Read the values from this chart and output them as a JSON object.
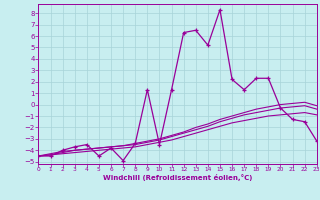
{
  "xlabel": "Windchill (Refroidissement éolien,°C)",
  "bg_color": "#c8eef0",
  "line_color": "#990099",
  "grid_color": "#a8d4d8",
  "xlim": [
    0,
    23
  ],
  "ylim": [
    -5.2,
    8.8
  ],
  "xticks": [
    0,
    1,
    2,
    3,
    4,
    5,
    6,
    7,
    8,
    9,
    10,
    11,
    12,
    13,
    14,
    15,
    16,
    17,
    18,
    19,
    20,
    21,
    22,
    23
  ],
  "yticks": [
    -5,
    -4,
    -3,
    -2,
    -1,
    0,
    1,
    2,
    3,
    4,
    5,
    6,
    7,
    8
  ],
  "series1_x": [
    0,
    1,
    2,
    3,
    4,
    5,
    6,
    7,
    8,
    9,
    10,
    11,
    12,
    13,
    14,
    15,
    16,
    17,
    18,
    19,
    20,
    21,
    22,
    23
  ],
  "series1_y": [
    -4.5,
    -4.5,
    -4.0,
    -3.7,
    -3.5,
    -4.5,
    -3.8,
    -4.9,
    -3.4,
    1.3,
    -3.5,
    1.3,
    6.3,
    6.5,
    5.2,
    8.3,
    2.2,
    1.3,
    2.3,
    2.3,
    -0.3,
    -1.3,
    -1.5,
    -3.2
  ],
  "series2_x": [
    0,
    1,
    2,
    3,
    4,
    5,
    6,
    7,
    8,
    9,
    10,
    11,
    12,
    13,
    14,
    15,
    16,
    17,
    18,
    19,
    20,
    21,
    22,
    23
  ],
  "series2_y": [
    -4.5,
    -4.3,
    -4.1,
    -4.0,
    -3.9,
    -3.8,
    -3.7,
    -3.6,
    -3.4,
    -3.2,
    -3.0,
    -2.7,
    -2.4,
    -2.0,
    -1.7,
    -1.3,
    -1.0,
    -0.7,
    -0.4,
    -0.2,
    0.0,
    0.1,
    0.2,
    -0.1
  ],
  "series3_x": [
    0,
    1,
    2,
    3,
    4,
    5,
    6,
    7,
    8,
    9,
    10,
    11,
    12,
    13,
    14,
    15,
    16,
    17,
    18,
    19,
    20,
    21,
    22,
    23
  ],
  "series3_y": [
    -4.5,
    -4.4,
    -4.2,
    -4.0,
    -3.9,
    -3.8,
    -3.7,
    -3.6,
    -3.5,
    -3.3,
    -3.1,
    -2.8,
    -2.5,
    -2.2,
    -1.9,
    -1.5,
    -1.2,
    -0.9,
    -0.7,
    -0.5,
    -0.3,
    -0.2,
    -0.1,
    -0.4
  ],
  "series4_x": [
    0,
    1,
    2,
    3,
    4,
    5,
    6,
    7,
    8,
    9,
    10,
    11,
    12,
    13,
    14,
    15,
    16,
    17,
    18,
    19,
    20,
    21,
    22,
    23
  ],
  "series4_y": [
    -4.5,
    -4.4,
    -4.3,
    -4.2,
    -4.1,
    -4.0,
    -3.9,
    -3.8,
    -3.7,
    -3.5,
    -3.3,
    -3.1,
    -2.8,
    -2.5,
    -2.2,
    -1.9,
    -1.6,
    -1.4,
    -1.2,
    -1.0,
    -0.9,
    -0.8,
    -0.7,
    -0.9
  ]
}
